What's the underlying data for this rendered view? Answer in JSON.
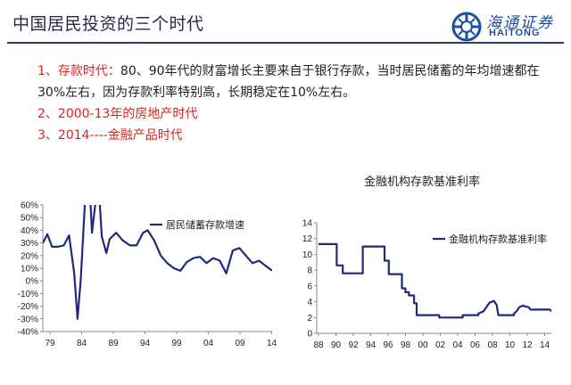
{
  "slide": {
    "title": "中国居民投资的三个时代"
  },
  "logo": {
    "chinese": "海通证券",
    "english": "HAITONG"
  },
  "points": [
    {
      "num": "1、",
      "lead": "存款时代：",
      "body": "80、90年代的财富增长主要来自于银行存款，当时居民储蓄的年均增速都在30%左右，因为存款利率特别高，长期稳定在10%左右。"
    },
    {
      "num": "2、",
      "lead": "2000-13年的房地产时代",
      "body": ""
    },
    {
      "num": "3、",
      "lead": "2014----金融产品时代",
      "body": ""
    }
  ],
  "colors": {
    "accent_red": "#e02020",
    "title_navy": "#1f2a4a",
    "series_navy": "#1f2a7a",
    "rule_navy": "#2a3c7a"
  },
  "chart_data": [
    {
      "type": "line",
      "title": "",
      "legend": [
        "居民储蓄存款增速"
      ],
      "legend_position": "top-right",
      "x_ticks": [
        "79",
        "84",
        "89",
        "94",
        "99",
        "04",
        "09",
        "14"
      ],
      "y_ticks": [
        "60%",
        "50%",
        "40%",
        "30%",
        "20%",
        "10%",
        "0%",
        "-10%",
        "-20%",
        "-30%",
        "-40%"
      ],
      "ylim": [
        -40,
        60
      ],
      "xlim": [
        1979,
        2014
      ],
      "grid": false,
      "series": [
        {
          "name": "居民储蓄存款增速",
          "x": [
            1979,
            1979.7,
            1980.4,
            1981.2,
            1982.2,
            1983,
            1983.8,
            1984.3,
            1984.8,
            1985.2,
            1985.6,
            1986,
            1986.5,
            1987,
            1987.5,
            1988,
            1988.7,
            1989.2,
            1990.2,
            1991.2,
            1992.3,
            1993.3,
            1994.3,
            1995,
            1996,
            1997,
            1998,
            1999,
            2000,
            2001,
            2002,
            2003,
            2004,
            2005,
            2006,
            2007,
            2008,
            2009,
            2010,
            2011,
            2012,
            2013,
            2014
          ],
          "y": [
            30,
            37,
            27,
            27,
            28,
            36,
            6,
            -30,
            2,
            40,
            78,
            90,
            38,
            60,
            78,
            35,
            22,
            33,
            38,
            32,
            28,
            28,
            38,
            40,
            32,
            20,
            14,
            10,
            8,
            15,
            18,
            19,
            14,
            18,
            16,
            6,
            24,
            26,
            20,
            14,
            16,
            12,
            8
          ]
        }
      ]
    },
    {
      "type": "line",
      "title": "金融机构存款基准利率",
      "legend": [
        "金融机构存款基准利率"
      ],
      "legend_position": "top-right",
      "x_ticks": [
        "88",
        "90",
        "92",
        "94",
        "96",
        "98",
        "00",
        "02",
        "04",
        "06",
        "08",
        "10",
        "12",
        "14"
      ],
      "y_ticks": [
        "14",
        "12",
        "10",
        "8",
        "6",
        "4",
        "2",
        "0"
      ],
      "ylim": [
        0,
        14
      ],
      "xlim": [
        1988,
        2015
      ],
      "grid": false,
      "series": [
        {
          "name": "金融机构存款基准利率",
          "x": [
            1988.2,
            1989.5,
            1990.3,
            1990.3,
            1991,
            1991,
            1993.3,
            1993.3,
            1995.8,
            1995.8,
            1996.3,
            1996.3,
            1997.8,
            1997.8,
            1998.2,
            1998.2,
            1998.6,
            1998.6,
            1999.2,
            1999.2,
            1999.5,
            1999.5,
            2002.1,
            2002.1,
            2004.8,
            2004.8,
            2006.6,
            2006.6,
            2007.2,
            2007.4,
            2007.7,
            2007.9,
            2008.4,
            2008.7,
            2008.9,
            2009,
            2010.7,
            2010.7,
            2011,
            2011.3,
            2011.7,
            2012.4,
            2012.6,
            2014.8,
            2015
          ],
          "y": [
            11.3,
            11.3,
            11.3,
            8.6,
            8.6,
            7.6,
            7.6,
            11.0,
            11.0,
            9.2,
            9.2,
            7.5,
            7.5,
            5.7,
            5.7,
            5.2,
            5.2,
            4.8,
            4.8,
            3.8,
            3.8,
            2.3,
            2.3,
            2.0,
            2.0,
            2.3,
            2.3,
            2.5,
            2.8,
            3.1,
            3.6,
            3.9,
            4.1,
            3.6,
            2.3,
            2.3,
            2.3,
            2.5,
            2.8,
            3.3,
            3.5,
            3.3,
            3.0,
            3.0,
            2.8
          ]
        }
      ]
    }
  ]
}
